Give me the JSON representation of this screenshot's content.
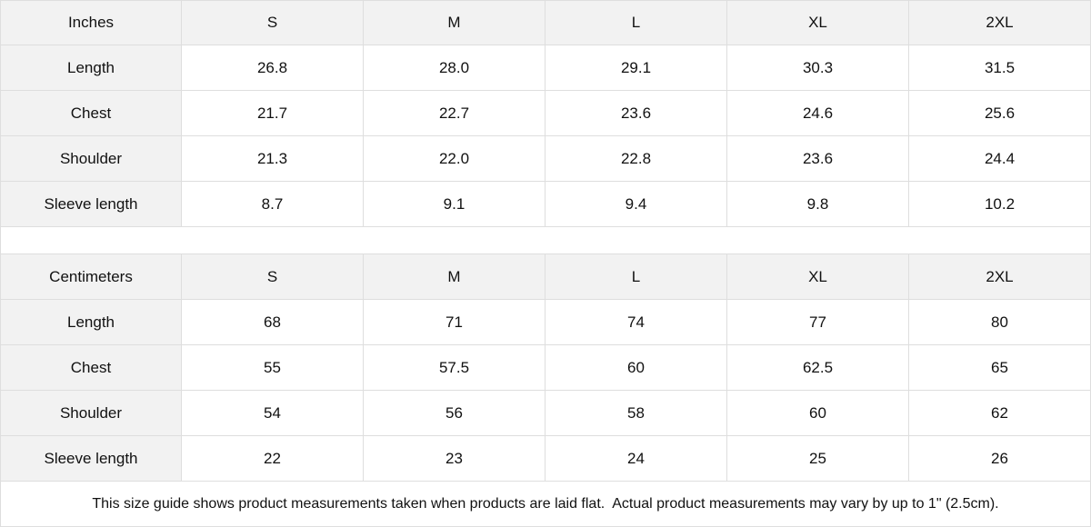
{
  "inches": {
    "header": [
      "Inches",
      "S",
      "M",
      "L",
      "XL",
      "2XL"
    ],
    "rows": [
      [
        "Length",
        "26.8",
        "28.0",
        "29.1",
        "30.3",
        "31.5"
      ],
      [
        "Chest",
        "21.7",
        "22.7",
        "23.6",
        "24.6",
        "25.6"
      ],
      [
        "Shoulder",
        "21.3",
        "22.0",
        "22.8",
        "23.6",
        "24.4"
      ],
      [
        "Sleeve length",
        "8.7",
        "9.1",
        "9.4",
        "9.8",
        "10.2"
      ]
    ]
  },
  "centimeters": {
    "header": [
      "Centimeters",
      "S",
      "M",
      "L",
      "XL",
      "2XL"
    ],
    "rows": [
      [
        "Length",
        "68",
        "71",
        "74",
        "77",
        "80"
      ],
      [
        "Chest",
        "55",
        "57.5",
        "60",
        "62.5",
        "65"
      ],
      [
        "Shoulder",
        "54",
        "56",
        "58",
        "60",
        "62"
      ],
      [
        "Sleeve length",
        "22",
        "23",
        "24",
        "25",
        "26"
      ]
    ]
  },
  "note": "This size guide shows product measurements taken when products are laid flat.  Actual product measurements may vary by up to 1\" (2.5cm)."
}
